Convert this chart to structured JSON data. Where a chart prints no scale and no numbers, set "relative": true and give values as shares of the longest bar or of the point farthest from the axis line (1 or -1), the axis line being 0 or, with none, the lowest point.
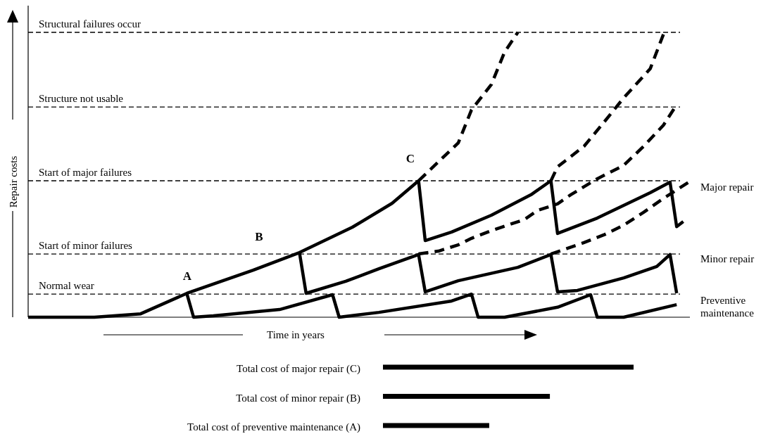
{
  "chart_data": [
    {
      "type": "line",
      "relative": true,
      "ylabel": "Repair costs",
      "xlabel": "Time in years",
      "marker": "none",
      "categories": [
        null,
        null,
        null,
        null,
        null,
        null,
        null,
        null,
        null,
        null,
        null,
        null,
        null,
        null,
        null,
        null,
        null,
        null,
        null,
        null,
        null,
        null,
        null,
        null,
        null,
        null,
        null,
        null,
        null,
        null,
        null,
        null,
        null,
        null,
        null,
        null,
        null,
        null,
        null,
        null,
        null,
        null,
        null,
        null,
        null,
        null,
        null,
        null,
        null,
        null,
        null,
        null,
        null,
        null,
        null,
        null,
        null,
        null,
        null,
        null,
        null,
        null,
        null,
        null,
        null,
        null,
        null,
        null,
        null,
        null,
        null,
        null,
        null,
        null,
        null,
        null,
        null,
        null,
        null,
        null,
        null,
        null,
        null,
        null,
        null,
        null,
        null,
        null,
        null,
        null,
        null,
        null,
        null,
        null,
        null,
        null,
        null,
        null,
        null,
        null,
        null
      ],
      "series": [
        {
          "color": "#000000",
          "line_style": "solid",
          "values": [
            0,
            null,
            null,
            null,
            null,
            null,
            null,
            null,
            null,
            null,
            0,
            null,
            null,
            null,
            null,
            null,
            null,
            0.012,
            null,
            null,
            null,
            null,
            null,
            null,
            0.084,
            null,
            null,
            null,
            null,
            null,
            null,
            null,
            null,
            null,
            0.165,
            null,
            null,
            null,
            null,
            null,
            null,
            0.227,
            null,
            null,
            null,
            null,
            null,
            null,
            null,
            0.316,
            null,
            null,
            null,
            null,
            null,
            0.4,
            null,
            null,
            null,
            0.479,
            null,
            null,
            null,
            null,
            null,
            null,
            null,
            null,
            null,
            null,
            null,
            null,
            null,
            null,
            null,
            null,
            null,
            null,
            null,
            null,
            null,
            null,
            null,
            null,
            null,
            null,
            null,
            null,
            null,
            null,
            null,
            null,
            null,
            null,
            null,
            null,
            null,
            null,
            null,
            null,
            null
          ]
        },
        {
          "color": "#000000",
          "line_style": "dashed",
          "values": [
            null,
            null,
            null,
            null,
            null,
            null,
            null,
            null,
            null,
            null,
            null,
            null,
            null,
            null,
            null,
            null,
            null,
            null,
            null,
            null,
            null,
            null,
            null,
            null,
            null,
            null,
            null,
            null,
            null,
            null,
            null,
            null,
            null,
            null,
            null,
            null,
            null,
            null,
            null,
            null,
            null,
            null,
            null,
            null,
            null,
            null,
            null,
            null,
            null,
            null,
            null,
            null,
            null,
            null,
            null,
            null,
            null,
            null,
            null,
            0.479,
            null,
            null,
            null,
            null,
            null,
            0.612,
            null,
            0.728,
            null,
            null,
            0.817,
            null,
            0.931,
            null,
            1,
            null,
            null,
            null,
            null,
            null,
            null,
            null,
            null,
            null,
            null,
            null,
            null,
            null,
            null,
            null,
            null,
            null,
            null,
            null,
            null,
            null,
            null,
            null,
            null,
            null,
            null
          ]
        },
        {
          "name": "Major repair",
          "color": "#000000",
          "line_style": "solid",
          "values": [
            null,
            null,
            null,
            null,
            null,
            null,
            null,
            null,
            null,
            null,
            null,
            null,
            null,
            null,
            null,
            null,
            null,
            null,
            null,
            null,
            null,
            null,
            null,
            null,
            null,
            null,
            null,
            null,
            null,
            null,
            null,
            null,
            null,
            null,
            null,
            null,
            null,
            null,
            null,
            null,
            null,
            null,
            null,
            null,
            null,
            null,
            null,
            null,
            null,
            null,
            null,
            null,
            null,
            null,
            null,
            null,
            null,
            null,
            null,
            0.479,
            0.269,
            null,
            null,
            null,
            0.299,
            null,
            null,
            null,
            null,
            null,
            0.358,
            null,
            null,
            null,
            null,
            null,
            0.43,
            null,
            null,
            0.479,
            0.294,
            null,
            null,
            null,
            null,
            null,
            0.348,
            null,
            null,
            null,
            null,
            null,
            null,
            null,
            0.437,
            null,
            null,
            0.474,
            0.318,
            0.336,
            null
          ]
        },
        {
          "name": "Minor repair",
          "color": "#000000",
          "line_style": "solid",
          "values": [
            null,
            null,
            null,
            null,
            null,
            null,
            null,
            null,
            null,
            null,
            null,
            null,
            null,
            null,
            null,
            null,
            null,
            null,
            null,
            null,
            null,
            null,
            null,
            null,
            null,
            null,
            null,
            null,
            null,
            null,
            null,
            null,
            null,
            null,
            null,
            null,
            null,
            null,
            null,
            null,
            null,
            0.227,
            0.084,
            null,
            null,
            null,
            null,
            null,
            0.126,
            null,
            null,
            null,
            null,
            0.17,
            null,
            null,
            null,
            null,
            null,
            0.22,
            0.089,
            null,
            null,
            null,
            null,
            0.128,
            null,
            null,
            null,
            null,
            null,
            null,
            null,
            null,
            0.175,
            null,
            null,
            null,
            null,
            0.22,
            0.089,
            null,
            null,
            0.094,
            null,
            null,
            null,
            null,
            null,
            null,
            0.138,
            null,
            null,
            null,
            null,
            0.178,
            null,
            0.22,
            0.084,
            null,
            null
          ]
        },
        {
          "name": "Preventive maintenance",
          "color": "#000000",
          "line_style": "solid",
          "values": [
            null,
            null,
            null,
            null,
            null,
            null,
            null,
            null,
            null,
            null,
            null,
            null,
            null,
            null,
            null,
            null,
            null,
            null,
            null,
            null,
            null,
            null,
            null,
            null,
            0.081,
            0,
            null,
            null,
            0.005,
            null,
            null,
            null,
            null,
            null,
            null,
            null,
            null,
            null,
            0.027,
            null,
            null,
            null,
            null,
            null,
            null,
            null,
            0.079,
            0,
            null,
            null,
            null,
            null,
            null,
            0.017,
            null,
            null,
            null,
            null,
            null,
            null,
            null,
            null,
            null,
            null,
            0.057,
            null,
            null,
            0.081,
            0,
            null,
            null,
            null,
            0,
            null,
            null,
            null,
            null,
            null,
            null,
            null,
            0.035,
            null,
            null,
            null,
            null,
            0.079,
            0,
            null,
            null,
            null,
            0,
            null,
            null,
            null,
            null,
            null,
            null,
            null,
            0.044,
            null,
            null
          ]
        },
        {
          "color": "#000000",
          "line_style": "dashed",
          "values": [
            null,
            null,
            null,
            null,
            null,
            null,
            null,
            null,
            null,
            null,
            null,
            null,
            null,
            null,
            null,
            null,
            null,
            null,
            null,
            null,
            null,
            null,
            null,
            null,
            null,
            null,
            null,
            null,
            null,
            null,
            null,
            null,
            null,
            null,
            null,
            null,
            null,
            null,
            null,
            null,
            null,
            null,
            null,
            null,
            null,
            null,
            null,
            null,
            null,
            null,
            null,
            null,
            null,
            null,
            null,
            null,
            null,
            null,
            null,
            0.222,
            null,
            null,
            0.232,
            null,
            null,
            0.254,
            null,
            0.277,
            null,
            null,
            0.304,
            null,
            null,
            null,
            null,
            0.343,
            null,
            0.375,
            null,
            null,
            0.398,
            null,
            0.43,
            null,
            null,
            null,
            0.486,
            null,
            null,
            null,
            0.533,
            null,
            null,
            0.6,
            null,
            null,
            0.674,
            null,
            0.746,
            null,
            null
          ]
        },
        {
          "color": "#000000",
          "line_style": "dashed",
          "values": [
            null,
            null,
            null,
            null,
            null,
            null,
            null,
            null,
            null,
            null,
            null,
            null,
            null,
            null,
            null,
            null,
            null,
            null,
            null,
            null,
            null,
            null,
            null,
            null,
            null,
            null,
            null,
            null,
            null,
            null,
            null,
            null,
            null,
            null,
            null,
            null,
            null,
            null,
            null,
            null,
            null,
            null,
            null,
            null,
            null,
            null,
            null,
            null,
            null,
            null,
            null,
            null,
            null,
            null,
            null,
            null,
            null,
            null,
            null,
            null,
            null,
            null,
            null,
            null,
            null,
            null,
            null,
            null,
            null,
            null,
            null,
            null,
            null,
            null,
            null,
            null,
            null,
            null,
            null,
            0.479,
            0.528,
            null,
            null,
            null,
            0.6,
            null,
            null,
            0.684,
            null,
            null,
            0.77,
            null,
            null,
            null,
            0.872,
            null,
            0.993,
            null,
            null,
            null,
            null
          ]
        },
        {
          "color": "#000000",
          "line_style": "dashed",
          "values": [
            null,
            null,
            null,
            null,
            null,
            null,
            null,
            null,
            null,
            null,
            null,
            null,
            null,
            null,
            null,
            null,
            null,
            null,
            null,
            null,
            null,
            null,
            null,
            null,
            null,
            null,
            null,
            null,
            null,
            null,
            null,
            null,
            null,
            null,
            null,
            null,
            null,
            null,
            null,
            null,
            null,
            null,
            null,
            null,
            null,
            null,
            null,
            null,
            null,
            null,
            null,
            null,
            null,
            null,
            null,
            null,
            null,
            null,
            null,
            null,
            null,
            null,
            null,
            null,
            null,
            null,
            null,
            null,
            null,
            null,
            null,
            null,
            null,
            null,
            null,
            null,
            null,
            null,
            null,
            0.222,
            null,
            null,
            null,
            null,
            0.262,
            null,
            null,
            0.289,
            null,
            null,
            0.323,
            null,
            null,
            0.368,
            null,
            null,
            0.417,
            null,
            null,
            null,
            0.477
          ]
        }
      ],
      "ref_lines": [
        {
          "axis": "y",
          "value": 1,
          "label": "Structural failures occur",
          "color": "#000000",
          "line_style": "dashed"
        },
        {
          "axis": "y",
          "value": 0.738,
          "label": "Structure not usable",
          "color": "#000000",
          "line_style": "dashed"
        },
        {
          "axis": "y",
          "value": 0.479,
          "label": "Start of major failures",
          "color": "#000000",
          "line_style": "dashed"
        },
        {
          "axis": "y",
          "value": 0.222,
          "label": "Start of minor failures",
          "color": "#000000",
          "line_style": "dashed"
        },
        {
          "axis": "y",
          "value": 0.081,
          "label": "Normal wear",
          "color": "#000000",
          "line_style": "dashed"
        }
      ],
      "annotations": [
        "A",
        "B",
        "C"
      ]
    },
    {
      "type": "bar",
      "orientation": "horizontal",
      "relative": true,
      "color": "#000000",
      "categories": [
        "Total cost of major repair (C)",
        "Total cost of minor repair (B)",
        "Total cost of preventive maintenance (A)"
      ],
      "values": [
        1,
        0.666,
        0.424
      ]
    }
  ]
}
